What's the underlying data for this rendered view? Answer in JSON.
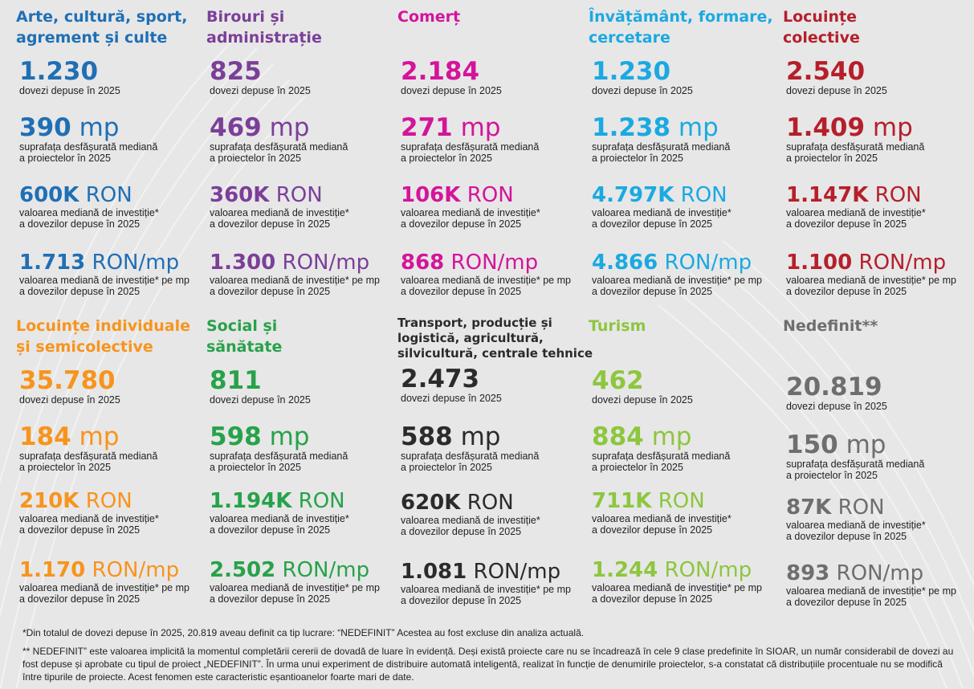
{
  "categories": [
    {
      "title": [
        "Arte, cultură, sport,",
        "agrement și culte"
      ],
      "color": "#1f6fb5",
      "stats": [
        {
          "value": "1.230",
          "unit": "",
          "desc": [
            "dovezi depuse în 2025"
          ]
        },
        {
          "value": "390",
          "unit": "mp",
          "desc": [
            "suprafața desfășurată mediană",
            "a proiectelor în 2025"
          ]
        },
        {
          "value": "600K",
          "unit": "RON",
          "desc": [
            "valoarea mediană de investiție*",
            "a dovezilor depuse în 2025"
          ]
        },
        {
          "value": "1.713",
          "unit": "RON/mp",
          "desc": [
            "valoarea mediană de investiție* pe mp",
            "a dovezilor depuse în 2025"
          ]
        }
      ]
    },
    {
      "title": [
        "Birouri și",
        "administrație"
      ],
      "color": "#7b3f98",
      "stats": [
        {
          "value": "825",
          "unit": "",
          "desc": [
            "dovezi depuse în 2025"
          ]
        },
        {
          "value": "469",
          "unit": "mp",
          "desc": [
            "suprafața desfășurată mediană",
            "a proiectelor în 2025"
          ]
        },
        {
          "value": "360K",
          "unit": "RON",
          "desc": [
            "valoarea mediană de investiție*",
            "a dovezilor depuse în 2025"
          ]
        },
        {
          "value": "1.300",
          "unit": "RON/mp",
          "desc": [
            "valoarea mediană de investiție* pe mp",
            "a dovezilor depuse în 2025"
          ]
        }
      ]
    },
    {
      "title": [
        "Comerț"
      ],
      "color": "#d4149a",
      "stats": [
        {
          "value": "2.184",
          "unit": "",
          "desc": [
            "dovezi depuse în 2025"
          ]
        },
        {
          "value": "271",
          "unit": "mp",
          "desc": [
            "suprafața desfășurată mediană",
            "a proiectelor în 2025"
          ]
        },
        {
          "value": "106K",
          "unit": "RON",
          "desc": [
            "valoarea mediană de investiție*",
            "a dovezilor depuse în 2025"
          ]
        },
        {
          "value": "868",
          "unit": "RON/mp",
          "desc": [
            "valoarea mediană de investiție* pe mp",
            "a dovezilor depuse în 2025"
          ]
        }
      ]
    },
    {
      "title": [
        "Învățământ, formare,",
        "cercetare"
      ],
      "color": "#1ba9e1",
      "stats": [
        {
          "value": "1.230",
          "unit": "",
          "desc": [
            "dovezi depuse în 2025"
          ]
        },
        {
          "value": "1.238",
          "unit": "mp",
          "desc": [
            "suprafața desfășurată mediană",
            "a proiectelor în 2025"
          ]
        },
        {
          "value": "4.797K",
          "unit": "RON",
          "desc": [
            "valoarea mediană de investiție*",
            "a dovezilor depuse în 2025"
          ]
        },
        {
          "value": "4.866",
          "unit": "RON/mp",
          "desc": [
            "valoarea mediană de investiție* pe mp",
            "a dovezilor depuse în 2025"
          ]
        }
      ]
    },
    {
      "title": [
        "Locuințe",
        "colective"
      ],
      "color": "#b51f2b",
      "stats": [
        {
          "value": "2.540",
          "unit": "",
          "desc": [
            "dovezi depuse în 2025"
          ]
        },
        {
          "value": "1.409",
          "unit": "mp",
          "desc": [
            "suprafața desfășurată mediană",
            "a proiectelor în 2025"
          ]
        },
        {
          "value": "1.147K",
          "unit": "RON",
          "desc": [
            "valoarea mediană de investiție*",
            "a dovezilor depuse în 2025"
          ]
        },
        {
          "value": "1.100",
          "unit": "RON/mp",
          "desc": [
            "valoarea mediană de investiție* pe mp",
            "a dovezilor depuse în 2025"
          ]
        }
      ]
    },
    {
      "title": [
        "Locuințe individuale",
        "și semicolective"
      ],
      "color": "#f7941d",
      "stats": [
        {
          "value": "35.780",
          "unit": "",
          "desc": [
            "dovezi depuse în 2025"
          ]
        },
        {
          "value": "184",
          "unit": "mp",
          "desc": [
            "suprafața desfășurată mediană",
            "a proiectelor în 2025"
          ]
        },
        {
          "value": "210K",
          "unit": "RON",
          "desc": [
            "valoarea mediană de investiție*",
            "a dovezilor depuse în 2025"
          ]
        },
        {
          "value": "1.170",
          "unit": "RON/mp",
          "desc": [
            "valoarea mediană de investiție* pe mp",
            "a dovezilor depuse în 2025"
          ]
        }
      ]
    },
    {
      "title": [
        "Social și",
        "sănătate"
      ],
      "color": "#27a24a",
      "stats": [
        {
          "value": "811",
          "unit": "",
          "desc": [
            "dovezi depuse în 2025"
          ]
        },
        {
          "value": "598",
          "unit": "mp",
          "desc": [
            "suprafața desfășurată mediană",
            "a proiectelor în 2025"
          ]
        },
        {
          "value": "1.194K",
          "unit": "RON",
          "desc": [
            "valoarea mediană de investiție*",
            "a dovezilor depuse în 2025"
          ]
        },
        {
          "value": "2.502",
          "unit": "RON/mp",
          "desc": [
            "valoarea mediană de investiție* pe mp",
            "a dovezilor depuse în 2025"
          ]
        }
      ]
    },
    {
      "title": [
        "Transport, producție și",
        "logistică, agricultură,",
        "silvicultură, centrale tehnice"
      ],
      "color": "#2b2b2b",
      "small_title": true,
      "stats": [
        {
          "value": "2.473",
          "unit": "",
          "desc": [
            "dovezi depuse în 2025"
          ]
        },
        {
          "value": "588",
          "unit": "mp",
          "desc": [
            "suprafața desfășurată mediană",
            "a proiectelor în 2025"
          ]
        },
        {
          "value": "620K",
          "unit": "RON",
          "desc": [
            "valoarea mediană de investiție*",
            "a dovezilor depuse în 2025"
          ]
        },
        {
          "value": "1.081",
          "unit": "RON/mp",
          "desc": [
            "valoarea mediană de investiție* pe mp",
            "a dovezilor depuse în 2025"
          ]
        }
      ]
    },
    {
      "title": [
        "Turism"
      ],
      "color": "#8dc63f",
      "stats": [
        {
          "value": "462",
          "unit": "",
          "desc": [
            "dovezi depuse în 2025"
          ]
        },
        {
          "value": "884",
          "unit": "mp",
          "desc": [
            "suprafața desfășurată mediană",
            "a proiectelor în 2025"
          ]
        },
        {
          "value": "711K",
          "unit": "RON",
          "desc": [
            "valoarea mediană de investiție*",
            "a dovezilor depuse în 2025"
          ]
        },
        {
          "value": "1.244",
          "unit": "RON/mp",
          "desc": [
            "valoarea mediană de investiție* pe mp",
            "a dovezilor depuse în 2025"
          ]
        }
      ]
    },
    {
      "title": [
        "Nedefinit**"
      ],
      "color": "#6d6e70",
      "stats": [
        {
          "value": "20.819",
          "unit": "",
          "desc": [
            "dovezi depuse în 2025"
          ]
        },
        {
          "value": "150",
          "unit": "mp",
          "desc": [
            "suprafața desfășurată mediană",
            "a proiectelor în 2025"
          ]
        },
        {
          "value": "87K",
          "unit": "RON",
          "desc": [
            "valoarea mediană de investiție*",
            "a dovezilor depuse în 2025"
          ]
        },
        {
          "value": "893",
          "unit": "RON/mp",
          "desc": [
            "valoarea mediană de investiție* pe mp",
            "a dovezilor depuse în 2025"
          ]
        }
      ]
    }
  ],
  "footnotes": [
    "*Din totalul de dovezi depuse în 2025, 20.819 aveau definit ca tip lucrare: “NEDEFINIT” Acestea au fost excluse din analiza actuală.",
    "** NEDEFINIT” este valoarea implicită la momentul completării cererii de dovadă de luare în evidență. Deși există proiecte care nu se încadrează în cele 9 clase predefinite în SIOAR, un număr considerabil de dovezi au fost depuse și aprobate cu tipul de proiect „NEDEFINIT”. În urma unui experiment de distribuire automată inteligentă, realizat în funcție de denumirile proiectelor, s-a constatat că distribuțiile procentuale nu se modifică între tipurile de proiecte. Acest fenomen este caracteristic eșantioanelor foarte mari de date."
  ]
}
